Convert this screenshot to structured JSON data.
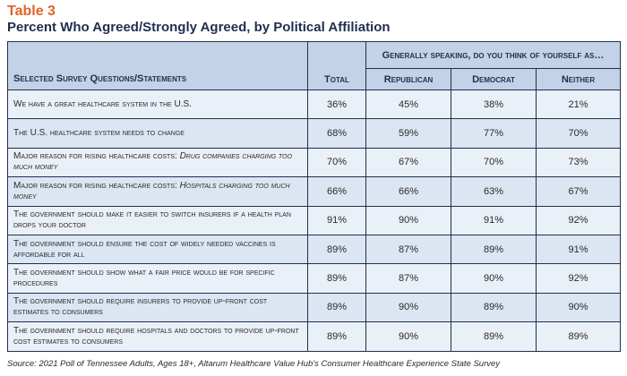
{
  "table_label": "Table 3",
  "title": "Percent Who Agreed/Strongly Agreed, by Political Affiliation",
  "header": {
    "question_col": "Selected Survey Questions/Statements",
    "total_col": "Total",
    "group_label": "Generally speaking, do you think of yourself as…",
    "affiliations": [
      "Republican",
      "Democrat",
      "Neither"
    ]
  },
  "rows": [
    {
      "q": "We have a great healthcare system in the U.S.",
      "qi": "",
      "total": "36%",
      "rep": "45%",
      "dem": "38%",
      "nei": "21%"
    },
    {
      "q": "The U.S. healthcare system needs to change",
      "qi": "",
      "total": "68%",
      "rep": "59%",
      "dem": "77%",
      "nei": "70%"
    },
    {
      "q": "Major reason for rising healthcare costs: ",
      "qi": "Drug companies charging too much money",
      "total": "70%",
      "rep": "67%",
      "dem": "70%",
      "nei": "73%"
    },
    {
      "q": "Major reason for rising healthcare costs: ",
      "qi": "Hospitals charging too much money",
      "total": "66%",
      "rep": "66%",
      "dem": "63%",
      "nei": "67%"
    },
    {
      "q": "The government should make it easier to switch insurers if a health plan drops your doctor",
      "qi": "",
      "total": "91%",
      "rep": "90%",
      "dem": "91%",
      "nei": "92%"
    },
    {
      "q": "The government should ensure the cost of widely needed vaccines is affordable for all",
      "qi": "",
      "total": "89%",
      "rep": "87%",
      "dem": "89%",
      "nei": "91%"
    },
    {
      "q": "The government should show what a fair price would be for specific procedures",
      "qi": "",
      "total": "89%",
      "rep": "87%",
      "dem": "90%",
      "nei": "92%"
    },
    {
      "q": "The government should require insurers to provide up-front cost estimates to consumers",
      "qi": "",
      "total": "89%",
      "rep": "90%",
      "dem": "89%",
      "nei": "90%"
    },
    {
      "q": "The government should require hospitals and doctors to provide up-front cost estimates to consumers",
      "qi": "",
      "total": "89%",
      "rep": "90%",
      "dem": "89%",
      "nei": "89%"
    }
  ],
  "source": "Source: 2021 Poll of Tennessee Adults, Ages 18+, Altarum Healthcare Value Hub's Consumer Healthcare Experience State Survey"
}
